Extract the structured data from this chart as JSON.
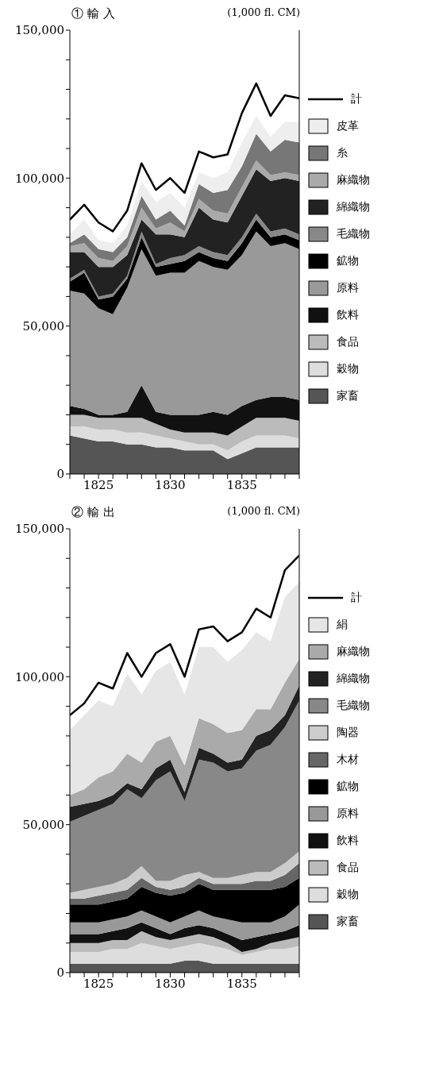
{
  "chart_data": [
    {
      "type": "area",
      "stacked": true,
      "title": "① 輸 入",
      "subtitle": "(1,000 fl. CM)",
      "x": [
        1823,
        1824,
        1825,
        1826,
        1827,
        1828,
        1829,
        1830,
        1831,
        1832,
        1833,
        1834,
        1835,
        1836,
        1837,
        1838,
        1839
      ],
      "xlim": [
        1823,
        1839
      ],
      "xticks": [
        {
          "value": 1823,
          "label": null
        },
        {
          "value": 1824,
          "label": null
        },
        1825,
        {
          "value": 1826,
          "label": null
        },
        {
          "value": 1827,
          "label": null
        },
        {
          "value": 1828,
          "label": null
        },
        {
          "value": 1829,
          "label": null
        },
        1830,
        {
          "value": 1831,
          "label": null
        },
        {
          "value": 1832,
          "label": null
        },
        {
          "value": 1833,
          "label": null
        },
        {
          "value": 1834,
          "label": null
        },
        1835,
        {
          "value": 1836,
          "label": null
        },
        {
          "value": 1837,
          "label": null
        },
        {
          "value": 1838,
          "label": null
        },
        {
          "value": 1839,
          "label": null
        }
      ],
      "ylim": [
        0,
        150000
      ],
      "yticks": [
        {
          "value": 0,
          "label": "0"
        },
        {
          "value": 10000,
          "label": null
        },
        {
          "value": 20000,
          "label": null
        },
        {
          "value": 30000,
          "label": null
        },
        {
          "value": 40000,
          "label": null
        },
        {
          "value": 50000,
          "label": "50,000"
        },
        {
          "value": 60000,
          "label": null
        },
        {
          "value": 70000,
          "label": null
        },
        {
          "value": 80000,
          "label": null
        },
        {
          "value": 90000,
          "label": null
        },
        {
          "value": 100000,
          "label": "100,000"
        },
        {
          "value": 110000,
          "label": null
        },
        {
          "value": 120000,
          "label": null
        },
        {
          "value": 130000,
          "label": null
        },
        {
          "value": 140000,
          "label": null
        },
        {
          "value": 150000,
          "label": "150,000"
        }
      ],
      "legend": "right",
      "marker": "none",
      "line_style": "solid",
      "series": [
        {
          "name": "家畜",
          "color": "#555555",
          "values": [
            13000,
            12000,
            11000,
            11000,
            10000,
            10000,
            9000,
            9000,
            8000,
            8000,
            8000,
            5000,
            7000,
            9000,
            9000,
            9000,
            9000
          ]
        },
        {
          "name": "穀物",
          "color": "#dddddd",
          "values": [
            3000,
            4000,
            4000,
            4000,
            4000,
            4000,
            4000,
            3000,
            3000,
            2000,
            2000,
            3000,
            4000,
            4000,
            4000,
            4000,
            3000
          ]
        },
        {
          "name": "食品",
          "color": "#bbbbbb",
          "values": [
            4000,
            4000,
            4000,
            4000,
            5000,
            5000,
            4000,
            3000,
            3000,
            4000,
            4000,
            5000,
            5000,
            6000,
            6000,
            6000,
            6000
          ]
        },
        {
          "name": "飲料",
          "color": "#111111",
          "values": [
            3000,
            2000,
            1000,
            1000,
            2000,
            11000,
            4000,
            5000,
            6000,
            6000,
            7000,
            7000,
            7000,
            6000,
            7000,
            7000,
            7000
          ]
        },
        {
          "name": "原料",
          "color": "#999999",
          "values": [
            39000,
            39000,
            36000,
            34000,
            42000,
            46000,
            46000,
            48000,
            48000,
            52000,
            49000,
            49000,
            51000,
            57000,
            51000,
            52000,
            51000
          ]
        },
        {
          "name": "鉱物",
          "color": "#000000",
          "values": [
            3000,
            7000,
            3000,
            6000,
            3000,
            4000,
            3000,
            3000,
            4000,
            3000,
            3000,
            3000,
            4000,
            4000,
            3000,
            3000,
            3000
          ]
        },
        {
          "name": "毛織物",
          "color": "#888888",
          "values": [
            1000,
            1000,
            1000,
            1000,
            1000,
            2000,
            1000,
            2000,
            2000,
            2000,
            2000,
            2000,
            2000,
            2000,
            2000,
            2000,
            2000
          ]
        },
        {
          "name": "綿織物",
          "color": "#222222",
          "values": [
            9000,
            6000,
            10000,
            9000,
            7000,
            4000,
            10000,
            8000,
            6000,
            13000,
            11000,
            11000,
            14000,
            15000,
            17000,
            17000,
            18000
          ]
        },
        {
          "name": "麻織物",
          "color": "#aaaaaa",
          "values": [
            2000,
            3000,
            3000,
            2000,
            3000,
            4000,
            2000,
            4000,
            2000,
            3000,
            3000,
            3000,
            3000,
            3000,
            2000,
            2000,
            2000
          ]
        },
        {
          "name": "糸",
          "color": "#777777",
          "values": [
            1000,
            3000,
            3000,
            3000,
            3000,
            4000,
            3000,
            4000,
            2000,
            5000,
            6000,
            8000,
            7000,
            9000,
            8000,
            11000,
            11000
          ]
        },
        {
          "name": "皮革",
          "color": "#eeeeee",
          "values": [
            3000,
            5000,
            3000,
            3000,
            4000,
            5000,
            6000,
            6000,
            6000,
            4000,
            5000,
            6000,
            8000,
            6000,
            5000,
            6000,
            7000
          ]
        },
        {
          "name": "計",
          "type": "line",
          "color": "#000000",
          "values": [
            86000,
            91000,
            85000,
            82000,
            89000,
            105000,
            96000,
            100000,
            95000,
            109000,
            107000,
            108000,
            122000,
            132000,
            121000,
            128000,
            127000
          ]
        }
      ]
    },
    {
      "type": "area",
      "stacked": true,
      "title": "② 輸 出",
      "subtitle": "(1,000 fl. CM)",
      "x": [
        1823,
        1824,
        1825,
        1826,
        1827,
        1828,
        1829,
        1830,
        1831,
        1832,
        1833,
        1834,
        1835,
        1836,
        1837,
        1838,
        1839
      ],
      "xlim": [
        1823,
        1839
      ],
      "xticks": [
        {
          "value": 1823,
          "label": null
        },
        {
          "value": 1824,
          "label": null
        },
        1825,
        {
          "value": 1826,
          "label": null
        },
        {
          "value": 1827,
          "label": null
        },
        {
          "value": 1828,
          "label": null
        },
        {
          "value": 1829,
          "label": null
        },
        1830,
        {
          "value": 1831,
          "label": null
        },
        {
          "value": 1832,
          "label": null
        },
        {
          "value": 1833,
          "label": null
        },
        {
          "value": 1834,
          "label": null
        },
        1835,
        {
          "value": 1836,
          "label": null
        },
        {
          "value": 1837,
          "label": null
        },
        {
          "value": 1838,
          "label": null
        },
        {
          "value": 1839,
          "label": null
        }
      ],
      "ylim": [
        0,
        150000
      ],
      "yticks": [
        {
          "value": 0,
          "label": "0"
        },
        {
          "value": 10000,
          "label": null
        },
        {
          "value": 20000,
          "label": null
        },
        {
          "value": 30000,
          "label": null
        },
        {
          "value": 40000,
          "label": null
        },
        {
          "value": 50000,
          "label": "50,000"
        },
        {
          "value": 60000,
          "label": null
        },
        {
          "value": 70000,
          "label": null
        },
        {
          "value": 80000,
          "label": null
        },
        {
          "value": 90000,
          "label": null
        },
        {
          "value": 100000,
          "label": "100,000"
        },
        {
          "value": 110000,
          "label": null
        },
        {
          "value": 120000,
          "label": null
        },
        {
          "value": 130000,
          "label": null
        },
        {
          "value": 140000,
          "label": null
        },
        {
          "value": 150000,
          "label": "150,000"
        }
      ],
      "legend": "right",
      "marker": "none",
      "line_style": "solid",
      "series": [
        {
          "name": "家畜",
          "color": "#555555",
          "values": [
            3000,
            3000,
            3000,
            3000,
            3000,
            3000,
            3000,
            3000,
            4000,
            4000,
            3000,
            3000,
            3000,
            3000,
            3000,
            3000,
            3000
          ]
        },
        {
          "name": "穀物",
          "color": "#dddddd",
          "values": [
            4000,
            4000,
            4000,
            5000,
            5000,
            7000,
            6000,
            5000,
            5000,
            6000,
            6000,
            5000,
            3000,
            4000,
            5000,
            5000,
            6000
          ]
        },
        {
          "name": "食品",
          "color": "#bbbbbb",
          "values": [
            3000,
            3000,
            3000,
            3000,
            3000,
            4000,
            3000,
            3000,
            3000,
            3000,
            3000,
            2000,
            1000,
            1000,
            2000,
            3000,
            3000
          ]
        },
        {
          "name": "飲料",
          "color": "#111111",
          "values": [
            3000,
            3000,
            3000,
            3000,
            4000,
            3000,
            3000,
            2000,
            3000,
            3000,
            3000,
            3000,
            4000,
            4000,
            3000,
            3000,
            4000
          ]
        },
        {
          "name": "原料",
          "color": "#999999",
          "values": [
            4000,
            4000,
            4000,
            4000,
            4000,
            4000,
            4000,
            4000,
            4000,
            5000,
            4000,
            5000,
            6000,
            5000,
            4000,
            5000,
            7000
          ]
        },
        {
          "name": "鉱物",
          "color": "#000000",
          "values": [
            6000,
            6000,
            6000,
            6000,
            6000,
            8000,
            8000,
            9000,
            8000,
            9000,
            9000,
            10000,
            11000,
            11000,
            11000,
            10000,
            9000
          ]
        },
        {
          "name": "木材",
          "color": "#666666",
          "values": [
            2000,
            2000,
            3000,
            3000,
            3000,
            3000,
            2000,
            2000,
            2000,
            2000,
            2000,
            2000,
            2000,
            3000,
            3000,
            4000,
            5000
          ]
        },
        {
          "name": "陶器",
          "color": "#cccccc",
          "values": [
            2000,
            3000,
            3000,
            3000,
            4000,
            4000,
            2000,
            3000,
            4000,
            2000,
            2000,
            2000,
            3000,
            3000,
            3000,
            4000,
            4000
          ]
        },
        {
          "name": "毛織物",
          "color": "#888888",
          "values": [
            24000,
            25000,
            26000,
            27000,
            30000,
            23000,
            34000,
            37000,
            25000,
            38000,
            39000,
            36000,
            36000,
            41000,
            43000,
            46000,
            51000
          ]
        },
        {
          "name": "綿織物",
          "color": "#222222",
          "values": [
            5000,
            4000,
            3000,
            3000,
            2000,
            3000,
            4000,
            4000,
            3000,
            4000,
            3000,
            3000,
            3000,
            5000,
            5000,
            4000,
            5000
          ]
        },
        {
          "name": "麻織物",
          "color": "#aaaaaa",
          "values": [
            4000,
            5000,
            8000,
            8000,
            10000,
            9000,
            9000,
            8000,
            9000,
            10000,
            10000,
            10000,
            10000,
            9000,
            7000,
            11000,
            9000
          ]
        },
        {
          "name": "絹",
          "color": "#e6e6e6",
          "values": [
            22000,
            25000,
            26000,
            22000,
            27000,
            23000,
            24000,
            25000,
            24000,
            24000,
            26000,
            24000,
            27000,
            26000,
            23000,
            29000,
            26000
          ]
        },
        {
          "name": "計",
          "type": "line",
          "color": "#000000",
          "values": [
            87000,
            91000,
            98000,
            96000,
            108000,
            100000,
            108000,
            111000,
            100000,
            116000,
            117000,
            112000,
            115000,
            123000,
            120000,
            136000,
            141000
          ]
        }
      ]
    }
  ]
}
